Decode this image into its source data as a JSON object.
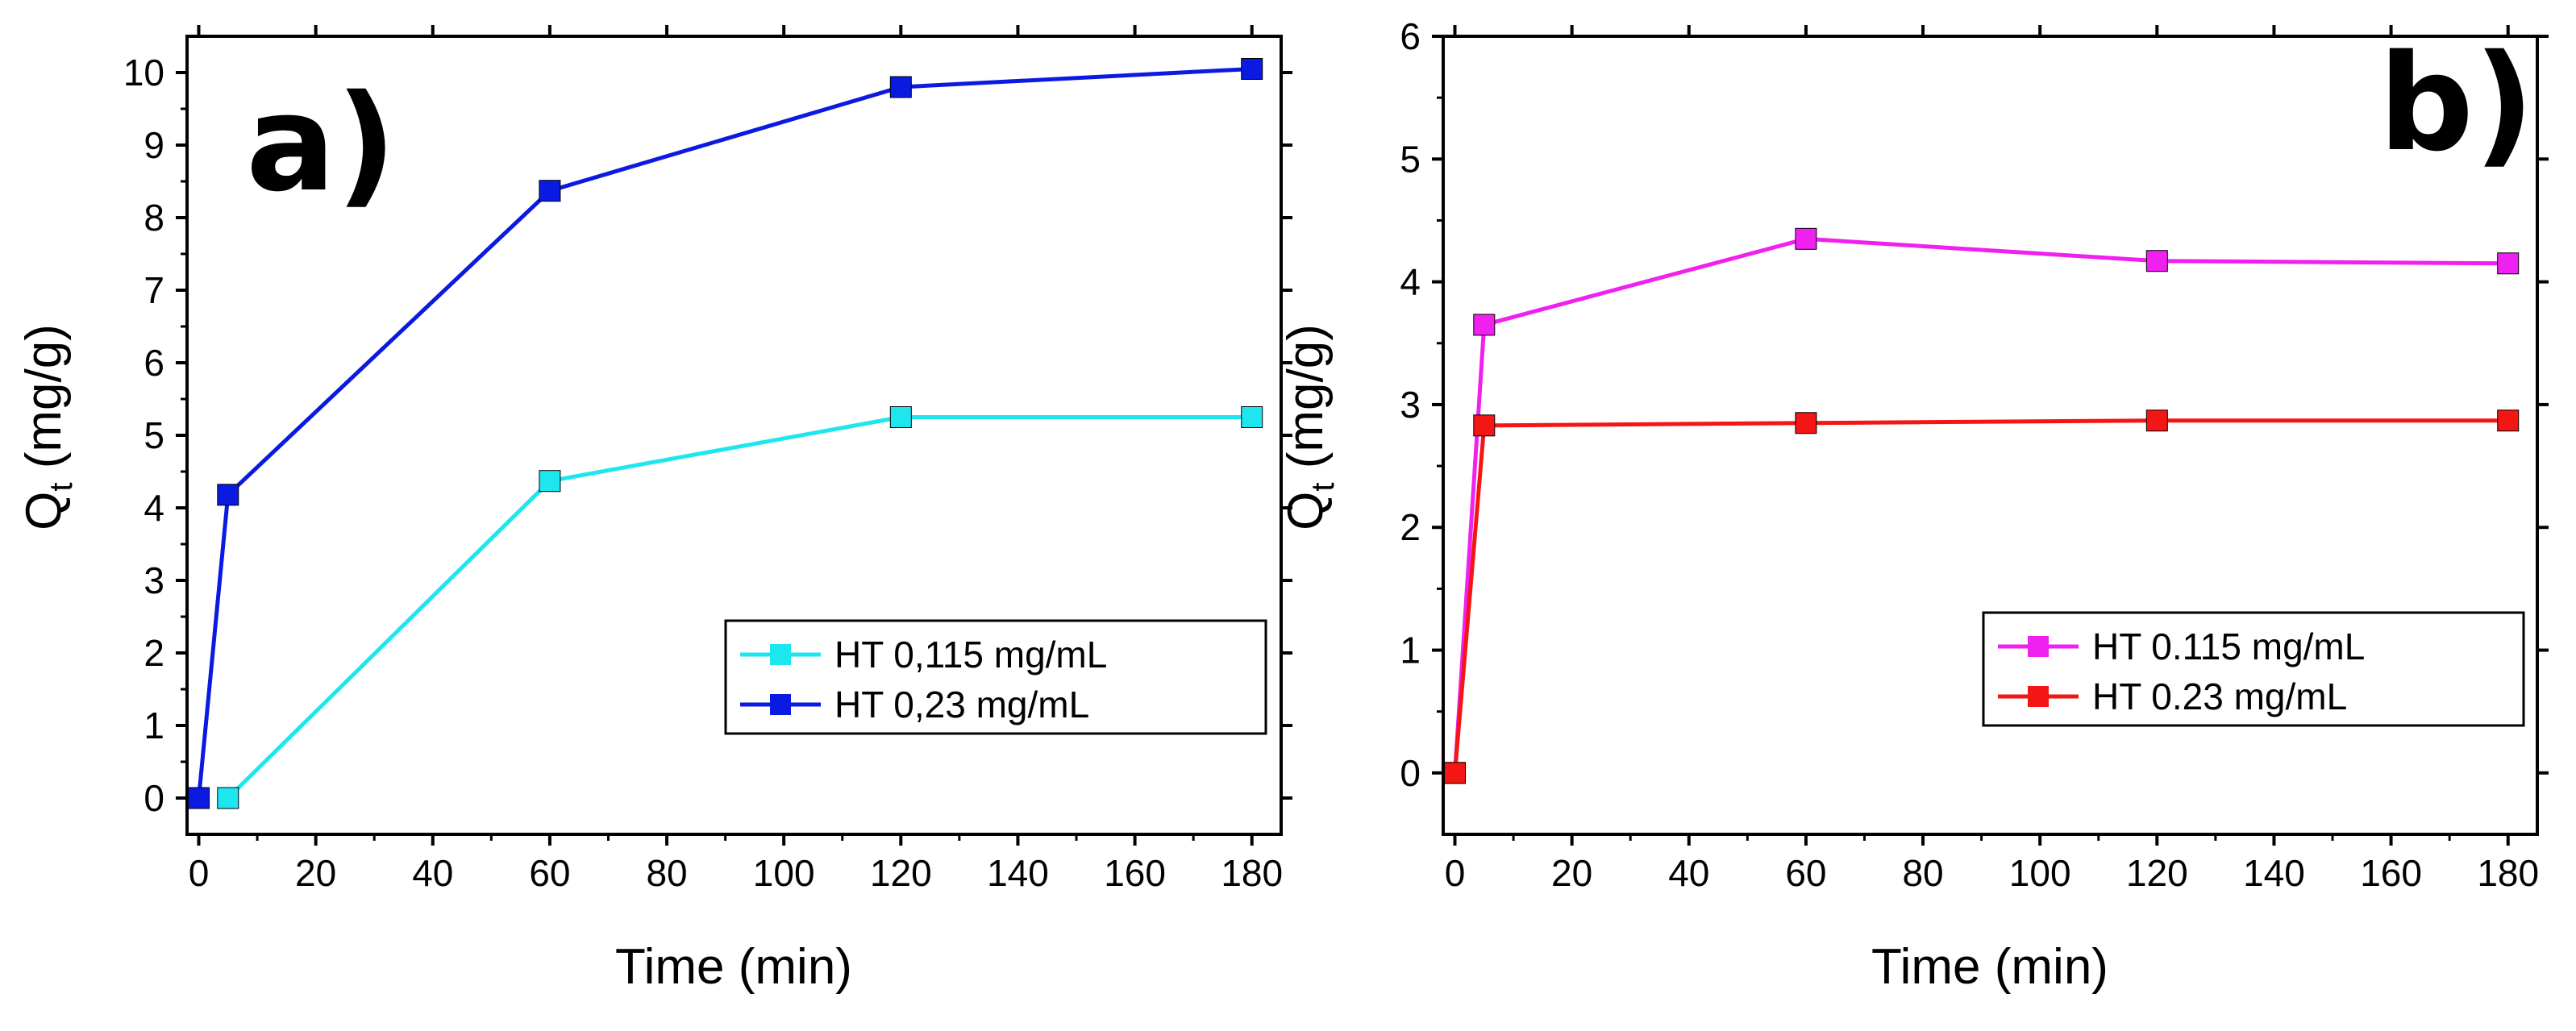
{
  "chart_data": [
    {
      "type": "line",
      "panel_label": "a)",
      "xlabel": "Time (min)",
      "ylabel": "Q",
      "ylabel_subscript": "t",
      "ylabel_unit": " (mg/g)",
      "xlim": [
        -2,
        185
      ],
      "ylim": [
        -0.5,
        10.5
      ],
      "xticks": [
        0,
        20,
        40,
        60,
        80,
        100,
        120,
        140,
        160,
        180
      ],
      "yticks": [
        0,
        1,
        2,
        3,
        4,
        5,
        6,
        7,
        8,
        9,
        10
      ],
      "legend_position": "bottom-right",
      "series": [
        {
          "name": "HT 0,115 mg/mL",
          "color": "#1ee6ef",
          "x": [
            5,
            60,
            120,
            180
          ],
          "values": [
            0,
            4.37,
            5.25,
            5.25
          ]
        },
        {
          "name": "HT 0,23 mg/mL",
          "color": "#0b1ae0",
          "x": [
            0,
            5,
            60,
            120,
            180
          ],
          "values": [
            0,
            4.18,
            8.37,
            9.8,
            10.05
          ]
        }
      ]
    },
    {
      "type": "line",
      "panel_label": "b)",
      "xlabel": "Time (min)",
      "ylabel": "Q",
      "ylabel_subscript": "t",
      "ylabel_unit": " (mg/g)",
      "xlim": [
        -2,
        185
      ],
      "ylim": [
        -0.5,
        6
      ],
      "xticks": [
        0,
        20,
        40,
        60,
        80,
        100,
        120,
        140,
        160,
        180
      ],
      "yticks": [
        0,
        1,
        2,
        3,
        4,
        5,
        6
      ],
      "legend_position": "bottom-right",
      "series": [
        {
          "name": "HT 0.115 mg/mL",
          "color": "#f020f0",
          "x": [
            0,
            5,
            60,
            120,
            180
          ],
          "values": [
            0,
            3.65,
            4.35,
            4.17,
            4.15
          ]
        },
        {
          "name": "HT 0.23 mg/mL",
          "color": "#f41515",
          "x": [
            0,
            5,
            60,
            120,
            180
          ],
          "values": [
            0,
            2.83,
            2.85,
            2.87,
            2.87
          ]
        }
      ]
    }
  ]
}
